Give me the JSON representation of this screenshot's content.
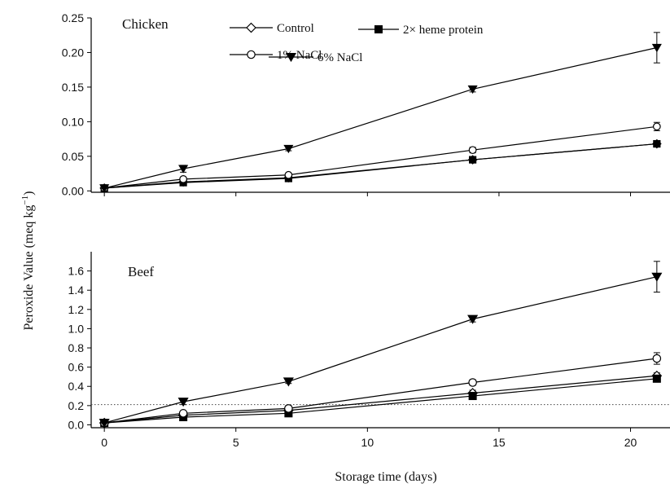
{
  "figure": {
    "ylabel": "Peroxide Value (meq kg",
    "ylabel_sup": "−1",
    "ylabel_end": ")",
    "xlabel": "Storage time (days)"
  },
  "chart_data": [
    {
      "type": "line",
      "panel_label": "Chicken",
      "x": [
        0,
        3,
        7,
        14,
        21
      ],
      "xlim": [
        -0.5,
        21.5
      ],
      "ylim": [
        -0.002,
        0.25
      ],
      "yticks": [
        0.0,
        0.05,
        0.1,
        0.15,
        0.2,
        0.25
      ],
      "ytick_labels": [
        "0.00",
        "0.05",
        "0.10",
        "0.15",
        "0.20",
        "0.25"
      ],
      "grid": false,
      "legend_position": "top",
      "series": [
        {
          "name": "Control",
          "marker": "diamond-open",
          "values": [
            0.004,
            0.013,
            0.019,
            0.045,
            0.068
          ],
          "errors": [
            0.001,
            0.002,
            0.002,
            0.002,
            0.003
          ]
        },
        {
          "name": "2× heme protein",
          "marker": "square-filled",
          "values": [
            0.004,
            0.012,
            0.018,
            0.045,
            0.068
          ],
          "errors": [
            0.001,
            0.002,
            0.002,
            0.002,
            0.003
          ]
        },
        {
          "name": "1% NaCl",
          "marker": "circle-open",
          "values": [
            0.004,
            0.017,
            0.023,
            0.059,
            0.093
          ],
          "errors": [
            0.001,
            0.002,
            0.002,
            0.004,
            0.006
          ]
        },
        {
          "name": "6% NaCl",
          "marker": "triangle-down-filled",
          "values": [
            0.004,
            0.032,
            0.061,
            0.147,
            0.207
          ],
          "errors": [
            0.001,
            0.005,
            0.003,
            0.004,
            0.022
          ]
        }
      ]
    },
    {
      "type": "line",
      "panel_label": "Beef",
      "x": [
        0,
        3,
        7,
        14,
        21
      ],
      "xlim": [
        -0.5,
        21.5
      ],
      "ylim": [
        -0.03,
        1.8
      ],
      "yticks": [
        0.0,
        0.2,
        0.4,
        0.6,
        0.8,
        1.0,
        1.2,
        1.4,
        1.6
      ],
      "ytick_labels": [
        "0.0",
        "0.2",
        "0.4",
        "0.6",
        "0.8",
        "1.0",
        "1.2",
        "1.4",
        "1.6"
      ],
      "xticks": [
        0,
        5,
        10,
        15,
        20
      ],
      "xtick_labels": [
        "0",
        "5",
        "10",
        "15",
        "20"
      ],
      "grid": false,
      "reference_line": {
        "y": 0.21,
        "style": "dotted"
      },
      "series": [
        {
          "name": "Control",
          "marker": "diamond-open",
          "values": [
            0.02,
            0.1,
            0.15,
            0.33,
            0.51
          ],
          "errors": [
            0.005,
            0.02,
            0.03,
            0.03,
            0.03
          ]
        },
        {
          "name": "2× heme protein",
          "marker": "square-filled",
          "values": [
            0.02,
            0.08,
            0.12,
            0.3,
            0.48
          ],
          "errors": [
            0.005,
            0.02,
            0.02,
            0.03,
            0.03
          ]
        },
        {
          "name": "1% NaCl",
          "marker": "circle-open",
          "values": [
            0.02,
            0.12,
            0.17,
            0.44,
            0.69
          ],
          "errors": [
            0.005,
            0.02,
            0.03,
            0.03,
            0.06
          ]
        },
        {
          "name": "6% NaCl",
          "marker": "triangle-down-filled",
          "values": [
            0.02,
            0.24,
            0.45,
            1.1,
            1.54
          ],
          "errors": [
            0.005,
            0.03,
            0.02,
            0.03,
            0.16
          ]
        }
      ]
    }
  ]
}
